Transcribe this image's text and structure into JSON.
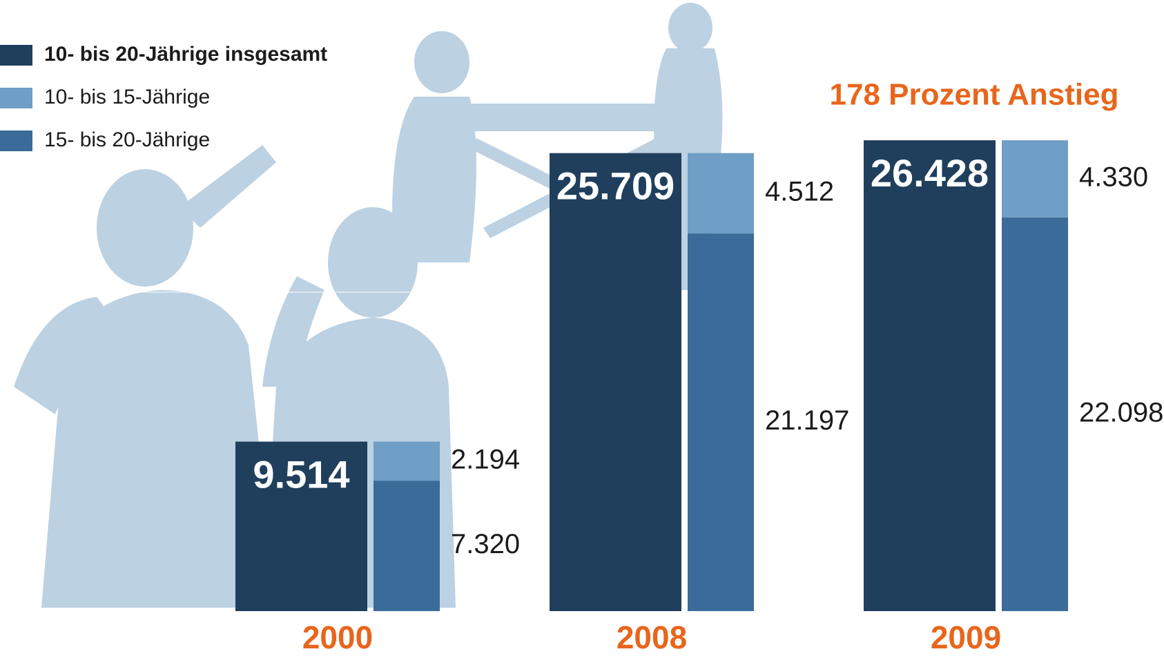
{
  "chart_data": {
    "type": "bar",
    "categories": [
      "2000",
      "2008",
      "2009"
    ],
    "annotation": "178 Prozent Anstieg",
    "series": [
      {
        "name": "10- bis 20-Jährige insgesamt",
        "color": "#1f3f5c",
        "column": 0,
        "values": [
          9514,
          25709,
          26428
        ],
        "value_labels": [
          "9.514",
          "25.709",
          "26.428"
        ]
      },
      {
        "name": "10- bis 15-Jährige",
        "color": "#6f9ec6",
        "column": 1,
        "values": [
          2194,
          4512,
          4330
        ],
        "value_labels": [
          "2.194",
          "4.512",
          "4.330"
        ]
      },
      {
        "name": "15- bis 20-Jährige",
        "color": "#3a6b99",
        "column": 1,
        "values": [
          7320,
          21197,
          22098
        ],
        "value_labels": [
          "7.320",
          "21.197",
          "22.098"
        ]
      }
    ]
  }
}
